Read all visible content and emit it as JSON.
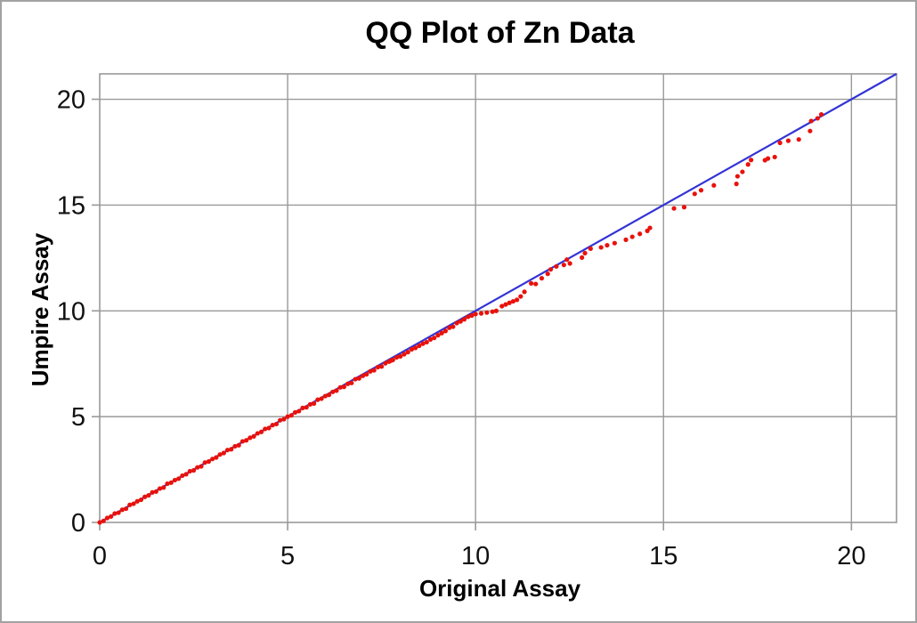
{
  "window": {
    "background": "#ffffff",
    "border_color": "#a2a2a2"
  },
  "chart_data": {
    "type": "scatter",
    "title": "QQ Plot of Zn Data",
    "xlabel": "Original Assay",
    "ylabel": "Umpire Assay",
    "xlim": [
      0,
      21.2
    ],
    "ylim": [
      0,
      21.2
    ],
    "xticks": [
      0,
      5,
      10,
      15,
      20
    ],
    "yticks": [
      0,
      5,
      10,
      15,
      20
    ],
    "grid": true,
    "legend_position": "none",
    "reference_line": {
      "name": "identity-line-y-equals-x",
      "from": [
        0,
        0
      ],
      "to": [
        21.2,
        21.2
      ],
      "color": "#3333d6",
      "width": 2.2
    },
    "series": [
      {
        "name": "qq-points",
        "color": "#e8120c",
        "marker": "dot",
        "marker_radius": 2.6,
        "points": [
          [
            0,
            0
          ],
          [
            0.1,
            0.07
          ],
          [
            0.2,
            0.21
          ],
          [
            0.3,
            0.28
          ],
          [
            0.4,
            0.42
          ],
          [
            0.5,
            0.46
          ],
          [
            0.6,
            0.6
          ],
          [
            0.7,
            0.65
          ],
          [
            0.8,
            0.83
          ],
          [
            0.9,
            0.88
          ],
          [
            1,
            1
          ],
          [
            1.1,
            1.07
          ],
          [
            1.2,
            1.21
          ],
          [
            1.3,
            1.28
          ],
          [
            1.4,
            1.42
          ],
          [
            1.5,
            1.46
          ],
          [
            1.6,
            1.6
          ],
          [
            1.7,
            1.65
          ],
          [
            1.8,
            1.83
          ],
          [
            1.9,
            1.88
          ],
          [
            2,
            2
          ],
          [
            2.1,
            2.07
          ],
          [
            2.2,
            2.21
          ],
          [
            2.3,
            2.28
          ],
          [
            2.4,
            2.42
          ],
          [
            2.5,
            2.46
          ],
          [
            2.6,
            2.6
          ],
          [
            2.7,
            2.65
          ],
          [
            2.8,
            2.83
          ],
          [
            2.9,
            2.88
          ],
          [
            3,
            3
          ],
          [
            3.1,
            3.07
          ],
          [
            3.2,
            3.21
          ],
          [
            3.3,
            3.28
          ],
          [
            3.4,
            3.42
          ],
          [
            3.5,
            3.46
          ],
          [
            3.6,
            3.6
          ],
          [
            3.7,
            3.65
          ],
          [
            3.8,
            3.83
          ],
          [
            3.9,
            3.88
          ],
          [
            4,
            4
          ],
          [
            4.1,
            4.07
          ],
          [
            4.2,
            4.21
          ],
          [
            4.3,
            4.28
          ],
          [
            4.4,
            4.42
          ],
          [
            4.5,
            4.46
          ],
          [
            4.6,
            4.6
          ],
          [
            4.7,
            4.65
          ],
          [
            4.8,
            4.83
          ],
          [
            4.9,
            4.88
          ],
          [
            5,
            5
          ],
          [
            5.1,
            5.06
          ],
          [
            5.2,
            5.2
          ],
          [
            5.3,
            5.26
          ],
          [
            5.4,
            5.41
          ],
          [
            5.5,
            5.44
          ],
          [
            5.6,
            5.58
          ],
          [
            5.7,
            5.62
          ],
          [
            5.8,
            5.8
          ],
          [
            5.9,
            5.85
          ],
          [
            6,
            5.97
          ],
          [
            6.1,
            6.03
          ],
          [
            6.2,
            6.17
          ],
          [
            6.3,
            6.23
          ],
          [
            6.4,
            6.38
          ],
          [
            6.5,
            6.41
          ],
          [
            6.6,
            6.55
          ],
          [
            6.7,
            6.59
          ],
          [
            6.8,
            6.77
          ],
          [
            6.9,
            6.81
          ],
          [
            7,
            6.93
          ],
          [
            7.1,
            7
          ],
          [
            7.2,
            7.14
          ],
          [
            7.3,
            7.19
          ],
          [
            7.4,
            7.34
          ],
          [
            7.5,
            7.37
          ],
          [
            7.6,
            7.52
          ],
          [
            7.7,
            7.6
          ],
          [
            7.75,
            7.65
          ],
          [
            7.8,
            7.68
          ],
          [
            7.9,
            7.8
          ],
          [
            8,
            7.85
          ],
          [
            8.1,
            7.95
          ],
          [
            8.2,
            8.05
          ],
          [
            8.3,
            8.18
          ],
          [
            8.4,
            8.25
          ],
          [
            8.5,
            8.35
          ],
          [
            8.6,
            8.45
          ],
          [
            8.7,
            8.52
          ],
          [
            8.8,
            8.65
          ],
          [
            8.9,
            8.72
          ],
          [
            9,
            8.85
          ],
          [
            9.1,
            8.95
          ],
          [
            9.2,
            9.05
          ],
          [
            9.3,
            9.2
          ],
          [
            9.4,
            9.25
          ],
          [
            9.5,
            9.42
          ],
          [
            9.6,
            9.5
          ],
          [
            9.7,
            9.6
          ],
          [
            9.8,
            9.72
          ],
          [
            9.9,
            9.78
          ],
          [
            10,
            9.85
          ],
          [
            10.15,
            9.88
          ],
          [
            10.3,
            9.92
          ],
          [
            10.45,
            9.96
          ],
          [
            10.55,
            10
          ],
          [
            10.7,
            10.22
          ],
          [
            10.8,
            10.3
          ],
          [
            10.9,
            10.38
          ],
          [
            11,
            10.45
          ],
          [
            11.1,
            10.52
          ],
          [
            11.2,
            10.68
          ],
          [
            11.3,
            10.9
          ],
          [
            11.48,
            11.3
          ],
          [
            11.6,
            11.27
          ],
          [
            11.76,
            11.54
          ],
          [
            11.92,
            11.75
          ],
          [
            12,
            11.96
          ],
          [
            12.15,
            12.1
          ],
          [
            12.35,
            12.17
          ],
          [
            12.43,
            12.42
          ],
          [
            12.51,
            12.24
          ],
          [
            12.83,
            12.52
          ],
          [
            12.91,
            12.73
          ],
          [
            13.06,
            12.94
          ],
          [
            13.34,
            13
          ],
          [
            13.5,
            13.1
          ],
          [
            13.7,
            13.2
          ],
          [
            14,
            13.36
          ],
          [
            14.17,
            13.5
          ],
          [
            14.37,
            13.64
          ],
          [
            14.57,
            13.78
          ],
          [
            14.64,
            13.92
          ],
          [
            15.28,
            14.84
          ],
          [
            15.55,
            14.9
          ],
          [
            15.83,
            15.53
          ],
          [
            16,
            15.7
          ],
          [
            16.34,
            15.93
          ],
          [
            16.94,
            16
          ],
          [
            16.97,
            16.36
          ],
          [
            17.1,
            16.57
          ],
          [
            17.25,
            16.92
          ],
          [
            17.33,
            17.13
          ],
          [
            17.7,
            17.12
          ],
          [
            17.78,
            17.2
          ],
          [
            17.96,
            17.27
          ],
          [
            18.1,
            17.94
          ],
          [
            18.32,
            18.04
          ],
          [
            18.6,
            18.1
          ],
          [
            18.9,
            18.5
          ],
          [
            18.93,
            18.97
          ],
          [
            19.1,
            19.1
          ],
          [
            19.2,
            19.28
          ]
        ]
      }
    ],
    "style": {
      "grid_color": "#999999",
      "frame_color": "#999999",
      "tick_color": "#999999",
      "text_color": "#111111",
      "tick_length": 9
    }
  }
}
